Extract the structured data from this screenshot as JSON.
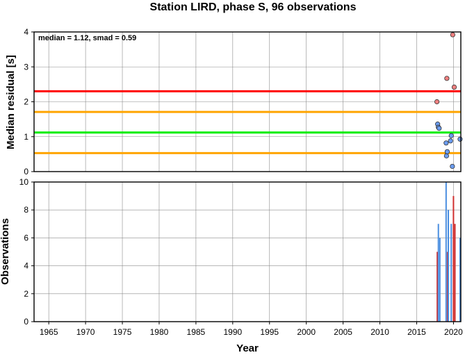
{
  "chart_data": [
    {
      "type": "scatter",
      "title": "Station LIRD, phase S, 96 observations",
      "xlabel": "",
      "ylabel": "Median residual [s]",
      "xlim": [
        1963,
        2021
      ],
      "ylim": [
        0,
        4
      ],
      "yticks": [
        0,
        1,
        2,
        3,
        4
      ],
      "grid": true,
      "annotation": "median = 1.12, smad = 0.59",
      "reference_lines": [
        {
          "value": 2.3,
          "color": "#ff0000"
        },
        {
          "value": 1.71,
          "color": "#ffa500"
        },
        {
          "value": 1.12,
          "color": "#00ee00"
        },
        {
          "value": 0.53,
          "color": "#ffa500"
        }
      ],
      "points_outlier": {
        "color": "#f08080",
        "x": [
          2017.75,
          2019.1,
          2019.9,
          2020.1
        ],
        "y": [
          2.0,
          2.67,
          3.92,
          2.42
        ]
      },
      "points_normal": {
        "color": "#6b9cf0",
        "x": [
          2017.85,
          2017.95,
          2018.05,
          2019.0,
          2019.05,
          2019.15,
          2019.6,
          2019.7,
          2019.85,
          2020.9
        ],
        "y": [
          1.36,
          1.27,
          1.24,
          0.82,
          0.45,
          0.57,
          0.88,
          1.03,
          0.15,
          0.93
        ]
      }
    },
    {
      "type": "bar",
      "title": "",
      "xlabel": "Year",
      "ylabel": "Observations",
      "xlim": [
        1963,
        2021
      ],
      "ylim": [
        0,
        10
      ],
      "yticks": [
        0,
        2,
        4,
        6,
        8,
        10
      ],
      "xticks": [
        1965,
        1970,
        1975,
        1980,
        1985,
        1990,
        1995,
        2000,
        2005,
        2010,
        2015,
        2020
      ],
      "grid": true,
      "series": [
        {
          "color": "#d03030",
          "x": [
            2017.8,
            2019.2,
            2020.0,
            2020.2
          ],
          "values": [
            5,
            5,
            9,
            7
          ]
        },
        {
          "color": "#4a8ee0",
          "x": [
            2017.95,
            2018.15,
            2019.0,
            2019.3,
            2019.7,
            2020.9
          ],
          "values": [
            7,
            6,
            10,
            8,
            7,
            6
          ]
        }
      ]
    }
  ]
}
